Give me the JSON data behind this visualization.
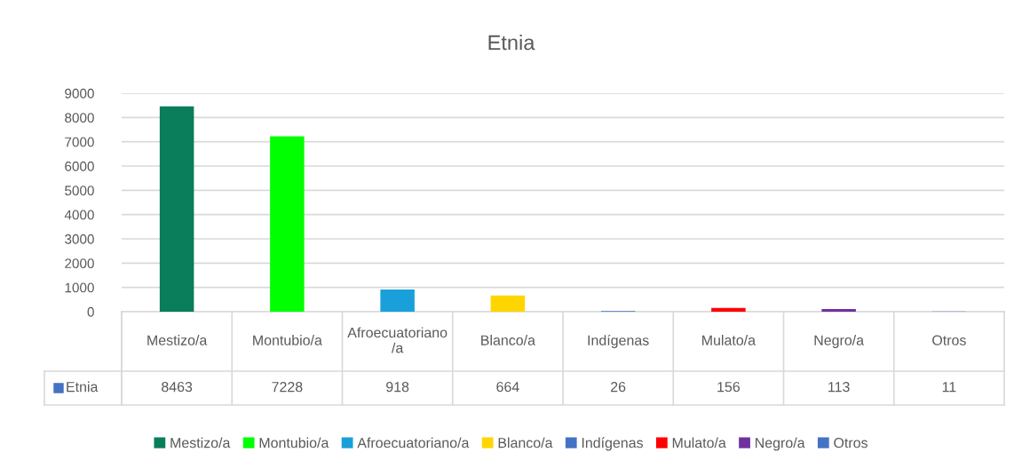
{
  "chart_data": {
    "type": "bar",
    "title": "Etnia",
    "categories": [
      "Mestizo/a",
      "Montubio/a",
      "Afroecuatoriano/a",
      "Blanco/a",
      "Indígenas",
      "Mulato/a",
      "Negro/a",
      "Otros"
    ],
    "series": [
      {
        "name": "Etnia",
        "color": "#4472c4",
        "colors": [
          "#0a7d5a",
          "#00ff00",
          "#19a0da",
          "#ffd500",
          "#4472c4",
          "#ff0000",
          "#7030a0",
          "#4472c4"
        ],
        "values": [
          8463,
          7228,
          918,
          664,
          26,
          156,
          113,
          11
        ]
      }
    ],
    "ylim": [
      0,
      9000
    ],
    "yticks": [
      0,
      1000,
      2000,
      3000,
      4000,
      5000,
      6000,
      7000,
      8000,
      9000
    ],
    "grid": "y",
    "legend": "bottom",
    "data_labels": true
  }
}
